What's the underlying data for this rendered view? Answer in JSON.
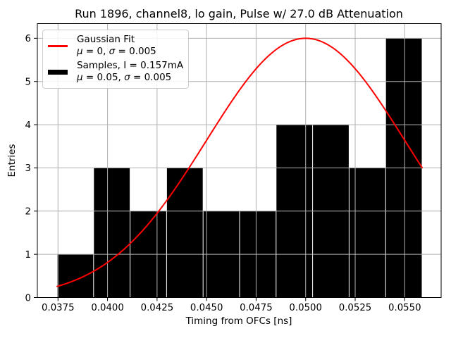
{
  "title": "Run 1896, channel8, lo gain, Pulse w/ 27.0 dB Attenuation",
  "colors": {
    "background": "#ffffff",
    "grid": "#b0b0b0",
    "spine": "#000000",
    "bar": "#000000",
    "fit_line": "#ff0000",
    "legend_border": "#cccccc"
  },
  "chart_data": {
    "type": "histogram+line",
    "title": "Run 1896, channel8, lo gain, Pulse w/ 27.0 dB Attenuation",
    "xlabel": "Timing from OFCs [ns]",
    "ylabel": "Entries",
    "xlim": [
      0.036458,
      0.056839
    ],
    "ylim": [
      0,
      6.34
    ],
    "grid": true,
    "x_ticks": [
      {
        "v": 0.0375,
        "label": "0.0375"
      },
      {
        "v": 0.04,
        "label": "0.0400"
      },
      {
        "v": 0.0425,
        "label": "0.0425"
      },
      {
        "v": 0.045,
        "label": "0.0450"
      },
      {
        "v": 0.0475,
        "label": "0.0475"
      },
      {
        "v": 0.05,
        "label": "0.0500"
      },
      {
        "v": 0.0525,
        "label": "0.0525"
      },
      {
        "v": 0.055,
        "label": "0.0550"
      }
    ],
    "y_ticks": [
      {
        "v": 0,
        "label": "0"
      },
      {
        "v": 1,
        "label": "1"
      },
      {
        "v": 2,
        "label": "2"
      },
      {
        "v": 3,
        "label": "3"
      },
      {
        "v": 4,
        "label": "4"
      },
      {
        "v": 5,
        "label": "5"
      },
      {
        "v": 6,
        "label": "6"
      }
    ],
    "histogram": {
      "bin_edges": [
        0.037454,
        0.039296,
        0.041139,
        0.042981,
        0.044824,
        0.046666,
        0.048509,
        0.050351,
        0.052194,
        0.054036,
        0.055879
      ],
      "counts": [
        1,
        3,
        2,
        3,
        2,
        2,
        4,
        4,
        3,
        6
      ],
      "color": "#000000"
    },
    "gaussian_fit": {
      "amplitude": 6,
      "mu": 0.05,
      "sigma": 0.005,
      "x_range": [
        0.037454,
        0.055879
      ],
      "color": "#ff0000",
      "linewidth": 2
    },
    "legend": {
      "location": "upper left",
      "entries": [
        {
          "symbol": "line",
          "color": "#ff0000",
          "label": "Gaussian Fit",
          "sublabel": "μ = 0, σ = 0.005"
        },
        {
          "symbol": "patch",
          "color": "#000000",
          "label": "Samples, I = 0.157mA",
          "sublabel": "μ = 0.05, σ = 0.005"
        }
      ]
    }
  }
}
